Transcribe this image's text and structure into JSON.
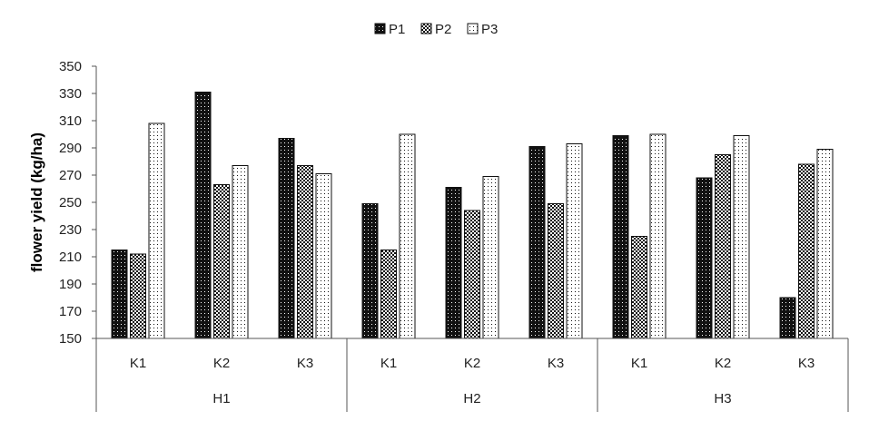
{
  "chart_data": {
    "type": "bar",
    "title": "",
    "xlabel": "",
    "ylabel": "flower yield (kg/ha)",
    "ylim": [
      150,
      350
    ],
    "yticks": [
      150,
      170,
      190,
      210,
      230,
      250,
      270,
      290,
      310,
      330,
      350
    ],
    "groups": [
      {
        "label": "H1",
        "categories": [
          "K1",
          "K2",
          "K3"
        ]
      },
      {
        "label": "H2",
        "categories": [
          "K1",
          "K2",
          "K3"
        ]
      },
      {
        "label": "H3",
        "categories": [
          "K1",
          "K2",
          "K3"
        ]
      }
    ],
    "series": [
      {
        "name": "P1",
        "pattern": "dense-dots",
        "values": [
          215,
          331,
          297,
          249,
          261,
          291,
          299,
          268,
          180
        ]
      },
      {
        "name": "P2",
        "pattern": "medium-dots",
        "values": [
          212,
          263,
          277,
          215,
          244,
          249,
          225,
          285,
          278
        ]
      },
      {
        "name": "P3",
        "pattern": "sparse-dots",
        "values": [
          308,
          277,
          271,
          300,
          269,
          293,
          300,
          299,
          289
        ]
      }
    ],
    "legend_position": "top-center",
    "grid": false
  }
}
